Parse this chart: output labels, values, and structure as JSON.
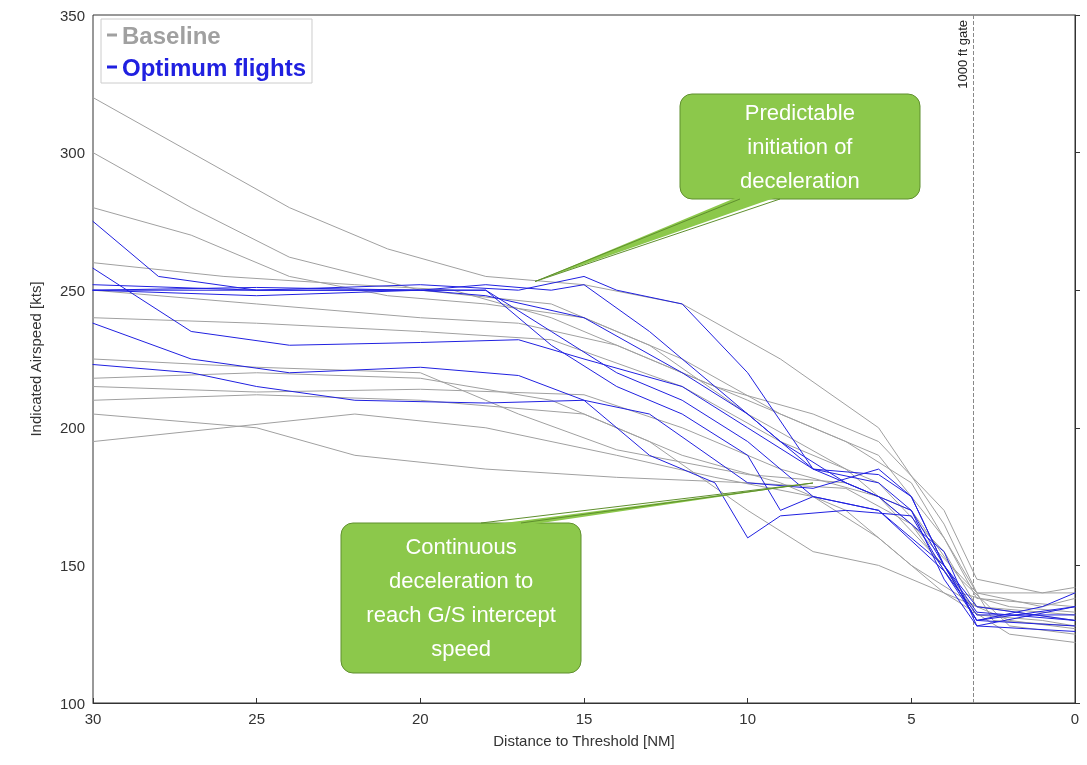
{
  "chart_data": {
    "type": "line",
    "xlabel": "Distance to Threshold [NM]",
    "ylabel": "Indicated Airspeed [kts]",
    "xlim": [
      30,
      0
    ],
    "xticks": [
      30,
      25,
      20,
      15,
      10,
      5,
      0
    ],
    "ylim": [
      100,
      350
    ],
    "yticks": [
      100,
      150,
      200,
      250,
      300,
      350
    ],
    "grid": false,
    "legend": "top left",
    "marker": "none",
    "line_style": "solid",
    "ref_lines": [
      {
        "axis": "x",
        "value": 3.1,
        "label": "1000 ft gate",
        "color": "#888888",
        "line_style": "dashed"
      }
    ],
    "annotations": [
      {
        "text": "Predictable initiation of deceleration",
        "x": 16.5,
        "y": 253
      },
      {
        "text": "Continuous deceleration to reach G/S intercept speed",
        "x": 8,
        "y": 180
      }
    ],
    "series": [
      {
        "name": "Baseline",
        "color": "#a0a0a0",
        "x": [
          30,
          25,
          20,
          15,
          12,
          9,
          6,
          4,
          3,
          1,
          0
        ],
        "values": [
          215,
          213,
          214,
          212,
          200,
          185,
          175,
          150,
          132,
          130,
          128
        ]
      },
      {
        "color": "#a0a0a0",
        "x": [
          30,
          27,
          24,
          20,
          16,
          13,
          10,
          7,
          5,
          3.5,
          2,
          0
        ],
        "values": [
          300,
          280,
          262,
          250,
          245,
          230,
          205,
          185,
          165,
          140,
          135,
          133
        ]
      },
      {
        "color": "#a0a0a0",
        "x": [
          30,
          25,
          20,
          16,
          12,
          9,
          6,
          4,
          3,
          0
        ],
        "values": [
          240,
          238,
          235,
          232,
          215,
          195,
          180,
          155,
          135,
          132
        ]
      },
      {
        "color": "#a0a0a0",
        "x": [
          30,
          25,
          20,
          17,
          14,
          10,
          7,
          5,
          3.5,
          2,
          0
        ],
        "values": [
          225,
          222,
          220,
          205,
          192,
          183,
          180,
          170,
          145,
          128,
          125
        ]
      },
      {
        "color": "#a0a0a0",
        "x": [
          30,
          25,
          22,
          18,
          14,
          10,
          7,
          5,
          3,
          1,
          0
        ],
        "values": [
          205,
          200,
          190,
          185,
          182,
          180,
          178,
          165,
          140,
          135,
          138
        ]
      },
      {
        "color": "#a0a0a0",
        "x": [
          30,
          27,
          24,
          21,
          18,
          15,
          12,
          9,
          6,
          4,
          3,
          0
        ],
        "values": [
          320,
          300,
          280,
          265,
          255,
          252,
          245,
          225,
          200,
          165,
          140,
          140
        ]
      },
      {
        "color": "#a0a0a0",
        "x": [
          30,
          26,
          22,
          19,
          16,
          13,
          10,
          7,
          5,
          3.5,
          2.5,
          0
        ],
        "values": [
          260,
          255,
          252,
          250,
          240,
          225,
          210,
          195,
          180,
          150,
          130,
          128
        ]
      },
      {
        "color": "#a0a0a0",
        "x": [
          30,
          25,
          20,
          15,
          12,
          9,
          7,
          5,
          3,
          0
        ],
        "values": [
          210,
          212,
          210,
          205,
          190,
          180,
          170,
          150,
          135,
          130
        ]
      },
      {
        "color": "#a0a0a0",
        "x": [
          30,
          27,
          24,
          21,
          18,
          15,
          12,
          9,
          6,
          4,
          3,
          0
        ],
        "values": [
          280,
          270,
          255,
          248,
          245,
          240,
          225,
          205,
          190,
          160,
          138,
          135
        ]
      },
      {
        "color": "#a0a0a0",
        "x": [
          30,
          26,
          22,
          18,
          14,
          11,
          8,
          6,
          4,
          2,
          0
        ],
        "values": [
          195,
          200,
          205,
          200,
          190,
          182,
          175,
          160,
          140,
          130,
          127
        ]
      },
      {
        "color": "#a0a0a0",
        "x": [
          30,
          25,
          20,
          17,
          14,
          11,
          8,
          6,
          4,
          3,
          1,
          0
        ],
        "values": [
          250,
          245,
          240,
          238,
          230,
          215,
          205,
          195,
          170,
          145,
          140,
          142
        ]
      },
      {
        "color": "#a0a0a0",
        "x": [
          30,
          25,
          20,
          16,
          13,
          10,
          8,
          6,
          4,
          2,
          0
        ],
        "values": [
          218,
          220,
          218,
          210,
          195,
          170,
          155,
          150,
          140,
          125,
          122
        ]
      },
      {
        "name": "Optimum flights",
        "color": "#2020e0",
        "x": [
          30,
          25,
          20,
          18,
          16,
          15,
          13,
          11,
          9,
          7,
          5,
          4,
          3,
          1,
          0
        ],
        "values": [
          250,
          251,
          250,
          252,
          250,
          252,
          235,
          215,
          195,
          180,
          170,
          150,
          130,
          135,
          140
        ]
      },
      {
        "color": "#2020e0",
        "x": [
          30,
          28,
          25,
          20,
          18,
          15,
          12,
          10,
          8,
          6,
          5,
          4,
          3,
          0
        ],
        "values": [
          275,
          255,
          250,
          250,
          248,
          240,
          220,
          205,
          185,
          183,
          175,
          150,
          133,
          130
        ]
      },
      {
        "color": "#2020e0",
        "x": [
          30,
          25,
          20,
          18,
          16,
          14,
          12,
          10,
          9,
          8,
          6,
          4,
          3,
          0
        ],
        "values": [
          250,
          250,
          250,
          250,
          230,
          215,
          205,
          190,
          170,
          175,
          170,
          148,
          130,
          128
        ]
      },
      {
        "color": "#2020e0",
        "x": [
          30,
          27,
          24,
          20,
          17,
          15,
          12,
          10,
          8,
          6,
          5,
          4,
          3,
          0
        ],
        "values": [
          258,
          235,
          230,
          231,
          232,
          225,
          215,
          200,
          185,
          180,
          170,
          145,
          128,
          135
        ]
      },
      {
        "color": "#2020e0",
        "x": [
          30,
          27,
          24,
          20,
          17,
          15,
          13,
          11,
          10,
          9,
          7,
          5,
          4,
          3,
          0
        ],
        "values": [
          238,
          225,
          220,
          222,
          219,
          210,
          190,
          180,
          160,
          168,
          170,
          168,
          148,
          132,
          132
        ]
      },
      {
        "color": "#2020e0",
        "x": [
          30,
          27,
          25,
          22,
          18,
          15,
          13,
          10,
          8,
          6,
          5,
          4,
          3,
          0
        ],
        "values": [
          223,
          220,
          215,
          210,
          209,
          210,
          205,
          180,
          178,
          185,
          175,
          150,
          135,
          130
        ]
      },
      {
        "color": "#2020e0",
        "x": [
          30,
          25,
          20,
          17,
          15,
          14,
          12,
          10,
          8,
          6,
          4,
          3,
          0
        ],
        "values": [
          252,
          250,
          252,
          250,
          255,
          250,
          245,
          220,
          185,
          175,
          155,
          128,
          126
        ]
      },
      {
        "color": "#2020e0",
        "x": [
          30,
          25,
          20,
          18,
          16,
          14,
          12,
          10,
          8,
          6,
          4,
          3,
          0
        ],
        "values": [
          250,
          248,
          250,
          250,
          235,
          220,
          210,
          195,
          175,
          170,
          150,
          130,
          135
        ]
      }
    ]
  }
}
